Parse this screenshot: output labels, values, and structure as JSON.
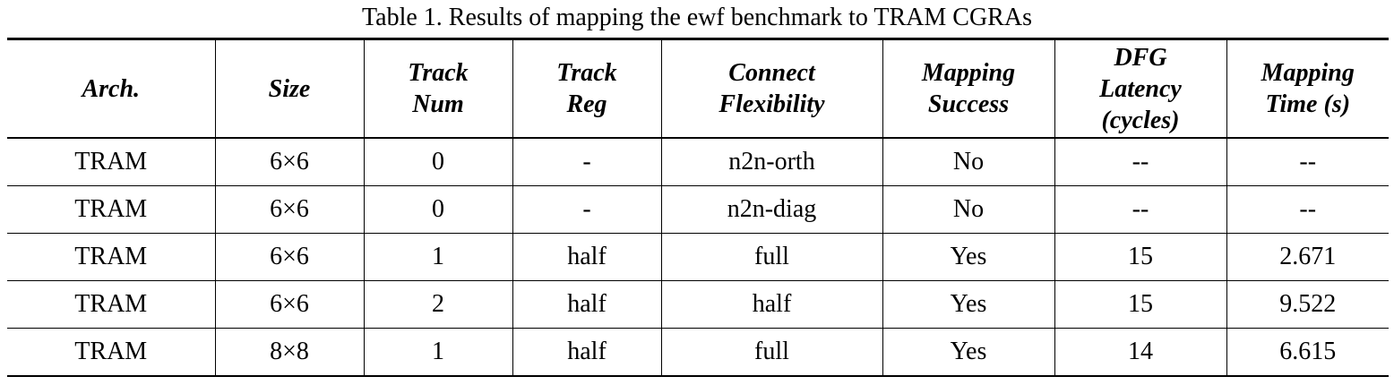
{
  "caption": "Table 1. Results of mapping the ewf benchmark to TRAM CGRAs",
  "table": {
    "headers": [
      "Arch.",
      "Size",
      "Track\nNum",
      "Track\nReg",
      "Connect\nFlexibility",
      "Mapping\nSuccess",
      "DFG\nLatency\n(cycles)",
      "Mapping\nTime (s)"
    ],
    "rows": [
      [
        "TRAM",
        "6×6",
        "0",
        "-",
        "n2n-orth",
        "No",
        "--",
        "--"
      ],
      [
        "TRAM",
        "6×6",
        "0",
        "-",
        "n2n-diag",
        "No",
        "--",
        "--"
      ],
      [
        "TRAM",
        "6×6",
        "1",
        "half",
        "full",
        "Yes",
        "15",
        "2.671"
      ],
      [
        "TRAM",
        "6×6",
        "2",
        "half",
        "half",
        "Yes",
        "15",
        "9.522"
      ],
      [
        "TRAM",
        "8×8",
        "1",
        "half",
        "full",
        "Yes",
        "14",
        "6.615"
      ]
    ]
  }
}
